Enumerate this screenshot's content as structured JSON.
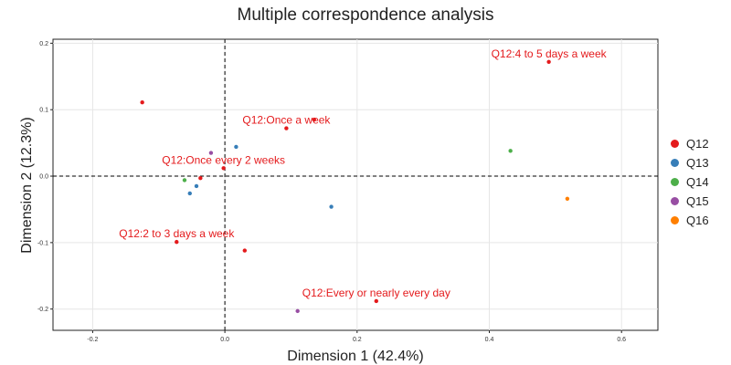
{
  "chart_data": {
    "type": "scatter",
    "title": "Multiple correspondence analysis",
    "xlabel": "Dimension 1 (42.4%)",
    "ylabel": "Dimension 2 (12.3%)",
    "xlim": [
      -0.26,
      0.655
    ],
    "ylim": [
      -0.232,
      0.206
    ],
    "xticks": [
      -0.2,
      0.0,
      0.2,
      0.4,
      0.6
    ],
    "xtick_labels": [
      "-0.2",
      "0.0",
      "0.2",
      "0.4",
      "0.6"
    ],
    "yticks": [
      -0.2,
      -0.1,
      0.0,
      0.1,
      0.2
    ],
    "ytick_labels": [
      "-0.2",
      "-0.1",
      "0.0",
      "0.1",
      "0.2"
    ],
    "grid": true,
    "reference_lines": {
      "x": 0,
      "y": 0,
      "style": "dashed"
    },
    "legend_position": "right",
    "series": [
      {
        "name": "Q12",
        "color": "#e41a1c",
        "points": [
          {
            "x": 0.49,
            "y": 0.172,
            "label": "Q12:4 to 5 days a week"
          },
          {
            "x": 0.135,
            "y": 0.085,
            "label": ""
          },
          {
            "x": 0.093,
            "y": 0.072,
            "label": "Q12:Once a week"
          },
          {
            "x": -0.125,
            "y": 0.111,
            "label": ""
          },
          {
            "x": -0.002,
            "y": 0.012,
            "label": "Q12:Once every 2 weeks"
          },
          {
            "x": -0.037,
            "y": -0.003,
            "label": ""
          },
          {
            "x": -0.073,
            "y": -0.099,
            "label": "Q12:2 to 3 days a week"
          },
          {
            "x": 0.03,
            "y": -0.112,
            "label": ""
          },
          {
            "x": 0.229,
            "y": -0.188,
            "label": "Q12:Every or nearly every day"
          }
        ]
      },
      {
        "name": "Q13",
        "color": "#377eb8",
        "points": [
          {
            "x": 0.017,
            "y": 0.044,
            "label": ""
          },
          {
            "x": -0.043,
            "y": -0.015,
            "label": ""
          },
          {
            "x": -0.053,
            "y": -0.026,
            "label": ""
          },
          {
            "x": 0.161,
            "y": -0.046,
            "label": ""
          }
        ]
      },
      {
        "name": "Q14",
        "color": "#4daf4a",
        "points": [
          {
            "x": 0.432,
            "y": 0.038,
            "label": ""
          },
          {
            "x": -0.061,
            "y": -0.006,
            "label": ""
          }
        ]
      },
      {
        "name": "Q15",
        "color": "#984ea3",
        "points": [
          {
            "x": -0.021,
            "y": 0.035,
            "label": ""
          },
          {
            "x": 0.11,
            "y": -0.203,
            "label": ""
          }
        ]
      },
      {
        "name": "Q16",
        "color": "#ff7f00",
        "points": [
          {
            "x": 0.518,
            "y": -0.034,
            "label": ""
          }
        ]
      }
    ]
  }
}
